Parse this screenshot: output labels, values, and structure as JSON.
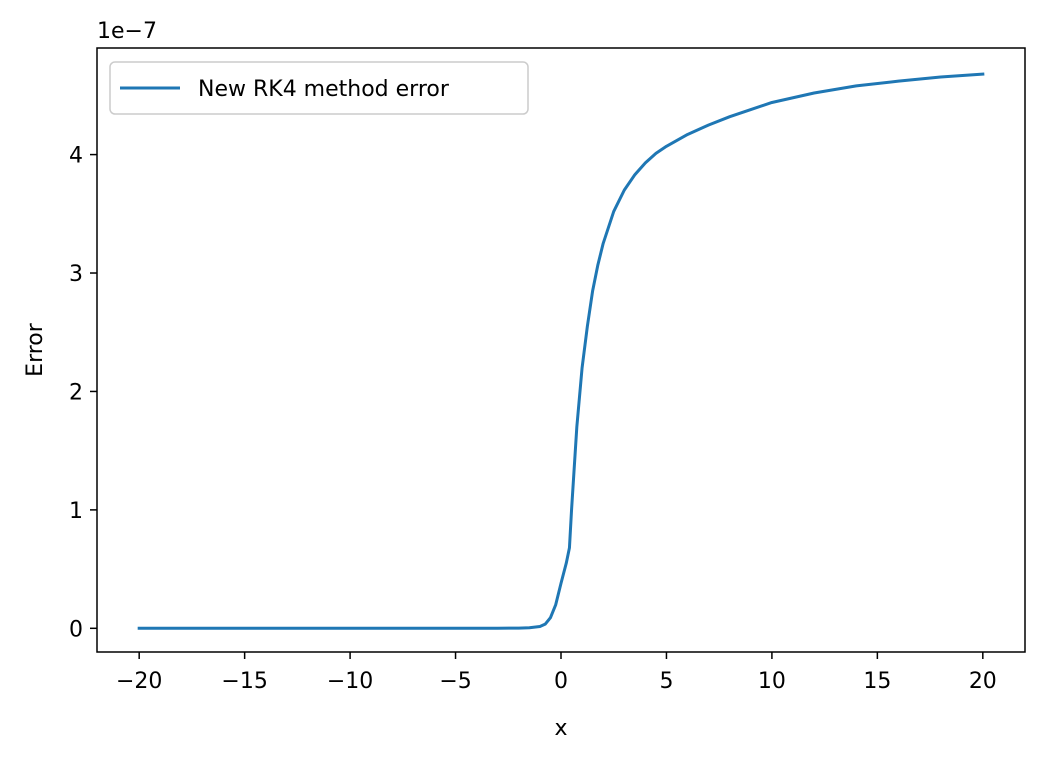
{
  "chart_data": {
    "type": "line",
    "xlabel": "x",
    "ylabel": "Error",
    "offset_text": "1e−7",
    "xlim": [
      -22,
      22
    ],
    "ylim": [
      -0.2,
      4.9
    ],
    "y_scale_factor": 1e-07,
    "xticks": [
      -20,
      -15,
      -10,
      -5,
      0,
      5,
      10,
      15,
      20
    ],
    "xtick_labels": [
      "−20",
      "−15",
      "−10",
      "−5",
      "0",
      "5",
      "10",
      "15",
      "20"
    ],
    "yticks": [
      0,
      1,
      2,
      3,
      4
    ],
    "ytick_labels": [
      "0",
      "1",
      "2",
      "3",
      "4"
    ],
    "grid": false,
    "legend_position": "top-left",
    "series": [
      {
        "name": "New RK4 method error",
        "color": "#1f77b4",
        "x": [
          -20,
          -10,
          -5,
          -3,
          -2,
          -1.5,
          -1,
          -0.75,
          -0.5,
          -0.25,
          0,
          0.25,
          0.4,
          0.5,
          0.75,
          1,
          1.25,
          1.5,
          1.75,
          2,
          2.5,
          3,
          3.5,
          4,
          4.5,
          5,
          6,
          7,
          8,
          9,
          10,
          12,
          14,
          16,
          18,
          20
        ],
        "y": [
          0,
          0,
          0,
          0.0005,
          0.002,
          0.005,
          0.015,
          0.035,
          0.09,
          0.2,
          0.38,
          0.55,
          0.68,
          1.0,
          1.7,
          2.2,
          2.55,
          2.85,
          3.07,
          3.25,
          3.52,
          3.7,
          3.83,
          3.93,
          4.01,
          4.07,
          4.17,
          4.25,
          4.32,
          4.38,
          4.44,
          4.52,
          4.58,
          4.62,
          4.655,
          4.68
        ]
      }
    ]
  }
}
